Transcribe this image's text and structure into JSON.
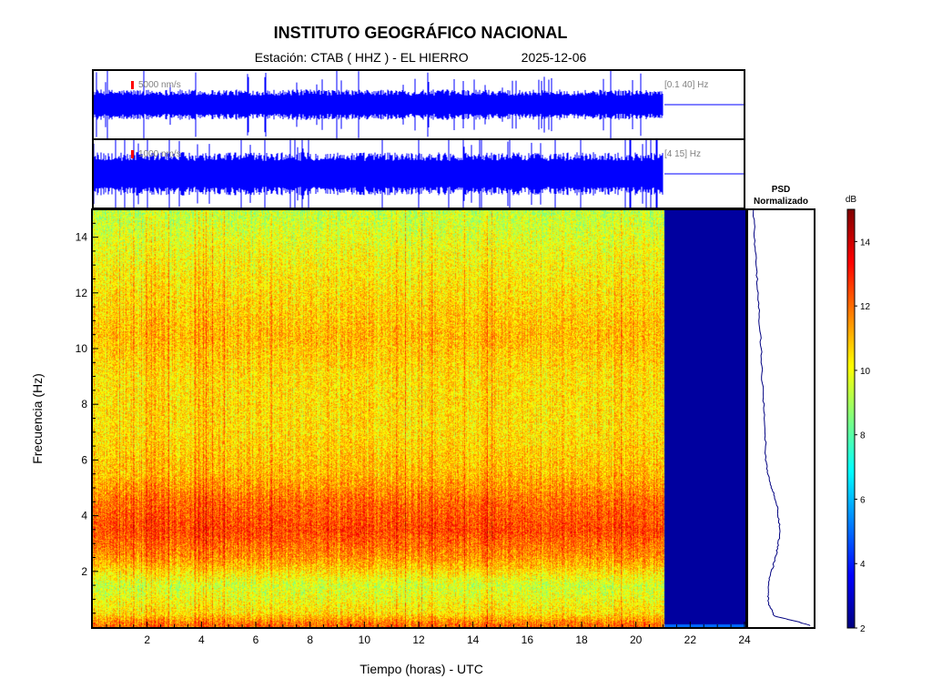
{
  "header": {
    "title": "INSTITUTO GEOGRÁFICO NACIONAL",
    "station": "Estación:  CTAB ( HHZ ) - EL HIERRO",
    "date": "2025-12-06"
  },
  "chart_data": [
    {
      "type": "line",
      "name": "seismogram-broadband",
      "scale_label": "5000 nm/s",
      "band_label": "[0.1 40] Hz",
      "xlim": [
        0,
        24
      ],
      "data_end_hour": 21,
      "envelope_fraction_of_panel": 0.35
    },
    {
      "type": "line",
      "name": "seismogram-filtered",
      "scale_label": "1000 nm/s",
      "band_label": "[4 15] Hz",
      "xlim": [
        0,
        24
      ],
      "data_end_hour": 21,
      "envelope_fraction_of_panel": 0.5
    },
    {
      "type": "heatmap",
      "name": "spectrogram",
      "xlabel": "Tiempo (horas) - UTC",
      "ylabel": "Frecuencia  (Hz)",
      "xlim": [
        0,
        24
      ],
      "ylim": [
        0,
        15
      ],
      "xticks": [
        2,
        4,
        6,
        8,
        10,
        12,
        14,
        16,
        18,
        20,
        22,
        24
      ],
      "yticks": [
        2,
        4,
        6,
        8,
        10,
        12,
        14
      ],
      "data_end_hour": 21,
      "empty_value_db": 2,
      "approx_db_by_frequency": [
        {
          "hz": 0.1,
          "db": 12
        },
        {
          "hz": 0.5,
          "db": 10.5
        },
        {
          "hz": 1.5,
          "db": 9.5
        },
        {
          "hz": 2.5,
          "db": 11.5
        },
        {
          "hz": 3.5,
          "db": 12.5
        },
        {
          "hz": 4.5,
          "db": 12
        },
        {
          "hz": 5.5,
          "db": 11
        },
        {
          "hz": 7,
          "db": 10.5
        },
        {
          "hz": 9,
          "db": 10.5
        },
        {
          "hz": 10.5,
          "db": 11
        },
        {
          "hz": 12,
          "db": 10.5
        },
        {
          "hz": 13.5,
          "db": 10
        },
        {
          "hz": 15,
          "db": 9.3
        }
      ]
    },
    {
      "type": "line",
      "name": "psd-normalized",
      "title_line1": "PSD",
      "title_line2": "Normalizado",
      "ylim": [
        0,
        15
      ],
      "points": [
        {
          "hz": 0.05,
          "value": 0.95
        },
        {
          "hz": 0.2,
          "value": 0.75
        },
        {
          "hz": 0.4,
          "value": 0.4
        },
        {
          "hz": 0.8,
          "value": 0.32
        },
        {
          "hz": 1.2,
          "value": 0.3
        },
        {
          "hz": 1.6,
          "value": 0.31
        },
        {
          "hz": 2.0,
          "value": 0.36
        },
        {
          "hz": 2.5,
          "value": 0.42
        },
        {
          "hz": 3.0,
          "value": 0.46
        },
        {
          "hz": 3.5,
          "value": 0.49
        },
        {
          "hz": 4.0,
          "value": 0.46
        },
        {
          "hz": 4.5,
          "value": 0.43
        },
        {
          "hz": 5.0,
          "value": 0.36
        },
        {
          "hz": 5.5,
          "value": 0.3
        },
        {
          "hz": 6.0,
          "value": 0.27
        },
        {
          "hz": 7.0,
          "value": 0.26
        },
        {
          "hz": 8.0,
          "value": 0.24
        },
        {
          "hz": 9.0,
          "value": 0.21
        },
        {
          "hz": 10.0,
          "value": 0.2
        },
        {
          "hz": 11.0,
          "value": 0.17
        },
        {
          "hz": 12.0,
          "value": 0.15
        },
        {
          "hz": 13.0,
          "value": 0.12
        },
        {
          "hz": 14.0,
          "value": 0.1
        },
        {
          "hz": 15.0,
          "value": 0.08
        }
      ]
    },
    {
      "type": "heatmap",
      "name": "colorbar",
      "label": "dB",
      "range": [
        2,
        15
      ],
      "ticks": [
        2,
        4,
        6,
        8,
        10,
        12,
        14
      ],
      "colormap": [
        "#00007f",
        "#0000ff",
        "#007fff",
        "#00ffff",
        "#7fff7f",
        "#ffff00",
        "#ff7f00",
        "#ff0000",
        "#7f0000"
      ]
    }
  ],
  "colors": {
    "trace": "#0000ff",
    "psd_line": "#000080",
    "empty_fill": "#00008f",
    "scale_marker": "#ff0000",
    "annotation": "#808080"
  }
}
